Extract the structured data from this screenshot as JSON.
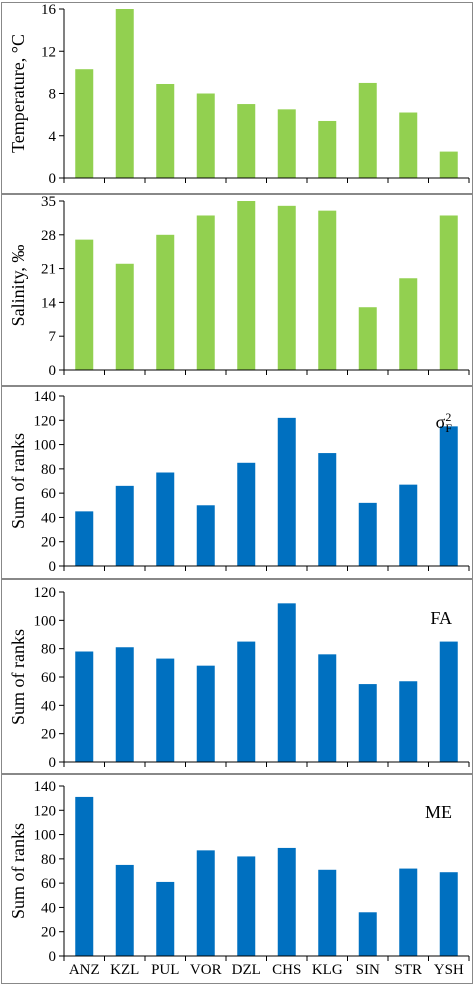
{
  "chart_data": [
    {
      "type": "bar",
      "ylabel": "Temperature, °C",
      "tag": "",
      "color": "#92d050",
      "categories": [
        "ANZ",
        "KZL",
        "PUL",
        "VOR",
        "DZL",
        "CHS",
        "KLG",
        "SIN",
        "STR",
        "YSH"
      ],
      "values": [
        10.3,
        16.0,
        8.9,
        8.0,
        7.0,
        6.5,
        5.4,
        9.0,
        6.2,
        2.5
      ],
      "ylim": [
        0,
        16
      ],
      "yticks": [
        0,
        4,
        8,
        12,
        16
      ]
    },
    {
      "type": "bar",
      "ylabel": "Salinity, ‰",
      "tag": "",
      "color": "#92d050",
      "categories": [
        "ANZ",
        "KZL",
        "PUL",
        "VOR",
        "DZL",
        "CHS",
        "KLG",
        "SIN",
        "STR",
        "YSH"
      ],
      "values": [
        27,
        22,
        28,
        32,
        35,
        34,
        33,
        13,
        19,
        32
      ],
      "ylim": [
        0,
        35
      ],
      "yticks": [
        0,
        7,
        14,
        21,
        28,
        35
      ]
    },
    {
      "type": "bar",
      "ylabel": "Sum of ranks",
      "tag": "σ²F",
      "color": "#0070c0",
      "categories": [
        "ANZ",
        "KZL",
        "PUL",
        "VOR",
        "DZL",
        "CHS",
        "KLG",
        "SIN",
        "STR",
        "YSH"
      ],
      "values": [
        45,
        66,
        77,
        50,
        85,
        122,
        93,
        52,
        67,
        115
      ],
      "ylim": [
        0,
        140
      ],
      "yticks": [
        0,
        20,
        40,
        60,
        80,
        100,
        120,
        140
      ]
    },
    {
      "type": "bar",
      "ylabel": "Sum of ranks",
      "tag": "FA",
      "color": "#0070c0",
      "categories": [
        "ANZ",
        "KZL",
        "PUL",
        "VOR",
        "DZL",
        "CHS",
        "KLG",
        "SIN",
        "STR",
        "YSH"
      ],
      "values": [
        78,
        81,
        73,
        68,
        85,
        112,
        76,
        55,
        57,
        85
      ],
      "ylim": [
        0,
        120
      ],
      "yticks": [
        0,
        20,
        40,
        60,
        80,
        100,
        120
      ]
    },
    {
      "type": "bar",
      "ylabel": "Sum of ranks",
      "tag": "ME",
      "color": "#0070c0",
      "categories": [
        "ANZ",
        "KZL",
        "PUL",
        "VOR",
        "DZL",
        "CHS",
        "KLG",
        "SIN",
        "STR",
        "YSH"
      ],
      "values": [
        131,
        75,
        61,
        87,
        82,
        89,
        71,
        36,
        72,
        69
      ],
      "ylim": [
        0,
        140
      ],
      "yticks": [
        0,
        20,
        40,
        60,
        80,
        100,
        120,
        140
      ]
    }
  ],
  "x_categories": [
    "ANZ",
    "KZL",
    "PUL",
    "VOR",
    "DZL",
    "CHS",
    "KLG",
    "SIN",
    "STR",
    "YSH"
  ]
}
